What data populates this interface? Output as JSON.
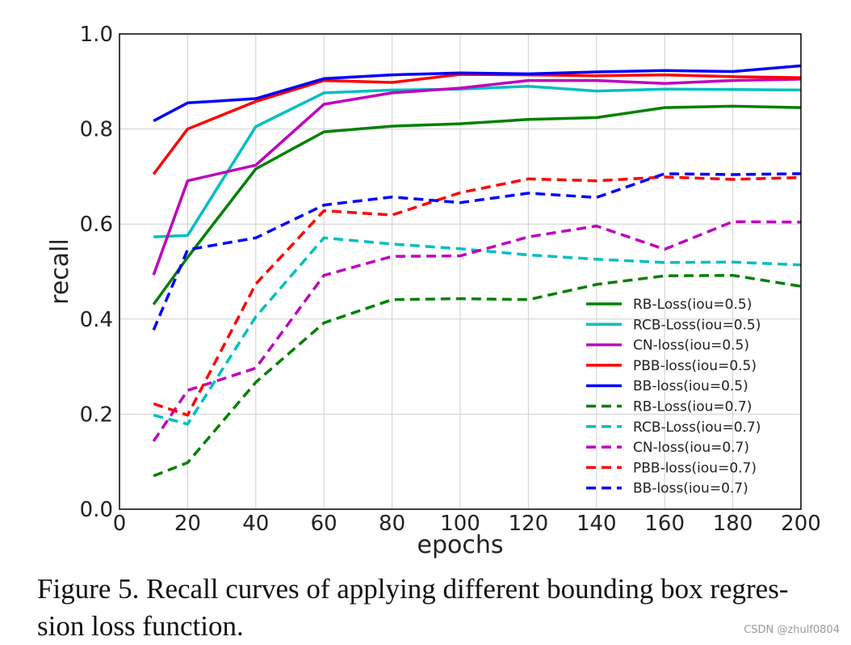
{
  "chart_data": {
    "type": "line",
    "title": "",
    "xlabel": "epochs",
    "ylabel": "recall",
    "xlim": [
      0,
      200
    ],
    "ylim": [
      0.0,
      1.0
    ],
    "grid": true,
    "legend_position": "lower-right",
    "x_ticks": [
      "0",
      "20",
      "40",
      "60",
      "80",
      "100",
      "120",
      "140",
      "160",
      "180",
      "200"
    ],
    "y_ticks": [
      "0.0",
      "0.2",
      "0.4",
      "0.6",
      "0.8",
      "1.0"
    ],
    "x": [
      10,
      20,
      40,
      60,
      80,
      100,
      120,
      140,
      160,
      180,
      200
    ],
    "series": [
      {
        "name": "RB-Loss(iou=0.5)",
        "color": "#008000",
        "style": "solid",
        "values": [
          0.431,
          0.53,
          0.716,
          0.794,
          0.806,
          0.811,
          0.82,
          0.824,
          0.845,
          0.848,
          0.845
        ]
      },
      {
        "name": "RCB-Loss(iou=0.5)",
        "color": "#00bfbf",
        "style": "solid",
        "values": [
          0.573,
          0.576,
          0.805,
          0.876,
          0.882,
          0.884,
          0.89,
          0.88,
          0.884,
          0.883,
          0.882
        ]
      },
      {
        "name": "CN-loss(iou=0.5)",
        "color": "#bf00bf",
        "style": "solid",
        "values": [
          0.493,
          0.691,
          0.724,
          0.852,
          0.876,
          0.886,
          0.902,
          0.902,
          0.896,
          0.902,
          0.905
        ]
      },
      {
        "name": "PBB-loss(iou=0.5)",
        "color": "#ff0000",
        "style": "solid",
        "values": [
          0.705,
          0.8,
          0.858,
          0.902,
          0.898,
          0.915,
          0.914,
          0.912,
          0.914,
          0.91,
          0.908
        ]
      },
      {
        "name": "BB-loss(iou=0.5)",
        "color": "#0000ff",
        "style": "solid",
        "values": [
          0.817,
          0.855,
          0.864,
          0.906,
          0.914,
          0.918,
          0.916,
          0.92,
          0.923,
          0.921,
          0.933
        ]
      },
      {
        "name": "RB-Loss(iou=0.7)",
        "color": "#008000",
        "style": "dashed",
        "values": [
          0.07,
          0.098,
          0.267,
          0.392,
          0.441,
          0.443,
          0.441,
          0.473,
          0.491,
          0.492,
          0.469
        ]
      },
      {
        "name": "RCB-Loss(iou=0.7)",
        "color": "#00bfbf",
        "style": "dashed",
        "values": [
          0.198,
          0.179,
          0.405,
          0.571,
          0.558,
          0.548,
          0.535,
          0.526,
          0.519,
          0.52,
          0.514
        ]
      },
      {
        "name": "CN-loss(iou=0.7)",
        "color": "#bf00bf",
        "style": "dashed",
        "values": [
          0.143,
          0.25,
          0.297,
          0.492,
          0.532,
          0.533,
          0.573,
          0.596,
          0.547,
          0.605,
          0.604
        ]
      },
      {
        "name": "PBB-loss(iou=0.7)",
        "color": "#ff0000",
        "style": "dashed",
        "values": [
          0.222,
          0.198,
          0.474,
          0.628,
          0.619,
          0.666,
          0.695,
          0.691,
          0.699,
          0.694,
          0.698
        ]
      },
      {
        "name": "BB-loss(iou=0.7)",
        "color": "#0000ff",
        "style": "dashed",
        "values": [
          0.377,
          0.546,
          0.571,
          0.64,
          0.657,
          0.645,
          0.665,
          0.656,
          0.706,
          0.704,
          0.706
        ]
      }
    ]
  },
  "caption": "Figure 5. Recall curves of applying different bounding box regres- sion loss function.",
  "watermark": "CSDN @zhulf0804"
}
